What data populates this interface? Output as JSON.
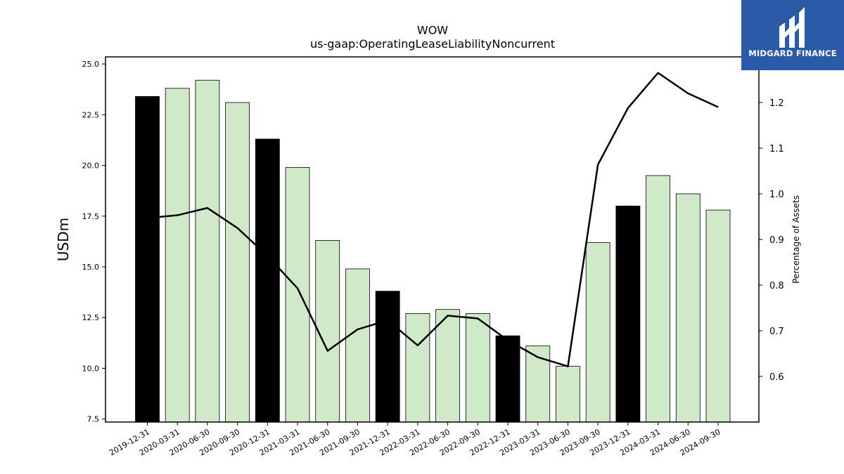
{
  "chart_data": {
    "type": "bar",
    "title": "WOW",
    "subtitle": "us-gaap:OperatingLeaseLiabilityNoncurrent",
    "ylabel": "USDm",
    "y2label": "Percentage of Assets",
    "ylim": [
      7.35,
      25.35
    ],
    "y2lim": [
      0.5,
      1.3
    ],
    "yticks": [
      "7.5",
      "10.0",
      "12.5",
      "15.0",
      "17.5",
      "20.0",
      "22.5",
      "25.0"
    ],
    "y2ticks": [
      "0.6",
      "0.7",
      "0.8",
      "0.9",
      "1.0",
      "1.1",
      "1.2"
    ],
    "categories": [
      "2019-12-31",
      "2020-03-31",
      "2020-06-30",
      "2020-09-30",
      "2020-12-31",
      "2021-03-31",
      "2021-06-30",
      "2021-09-30",
      "2021-12-31",
      "2022-03-31",
      "2022-06-30",
      "2022-09-30",
      "2022-12-31",
      "2023-03-31",
      "2023-06-30",
      "2023-09-30",
      "2023-12-31",
      "2024-03-31",
      "2024-06-30",
      "2024-09-30"
    ],
    "series": [
      {
        "values": [
          23.4,
          23.8,
          24.2,
          23.1,
          21.3,
          19.9,
          16.3,
          14.9,
          13.8,
          12.7,
          12.9,
          12.7,
          11.6,
          11.1,
          10.1,
          16.2,
          18.0,
          19.5,
          18.6,
          17.8
        ],
        "annual": [
          true,
          false,
          false,
          false,
          true,
          false,
          false,
          false,
          true,
          false,
          false,
          false,
          true,
          false,
          false,
          false,
          true,
          false,
          false,
          false
        ]
      },
      {
        "axis": "right",
        "values": [
          0.947,
          0.953,
          0.969,
          0.925,
          0.864,
          0.793,
          0.656,
          0.703,
          0.723,
          0.668,
          0.733,
          0.727,
          0.679,
          0.642,
          0.622,
          1.064,
          1.188,
          1.265,
          1.22,
          1.19
        ]
      }
    ],
    "colors": {
      "annual_bar": "#000000",
      "quarter_bar": "#cfe9c9",
      "bar_edge": "#000000",
      "line": "#000000"
    }
  },
  "logo": {
    "text": "MIDGARD FINANCE",
    "background": "#2b5aa8"
  }
}
